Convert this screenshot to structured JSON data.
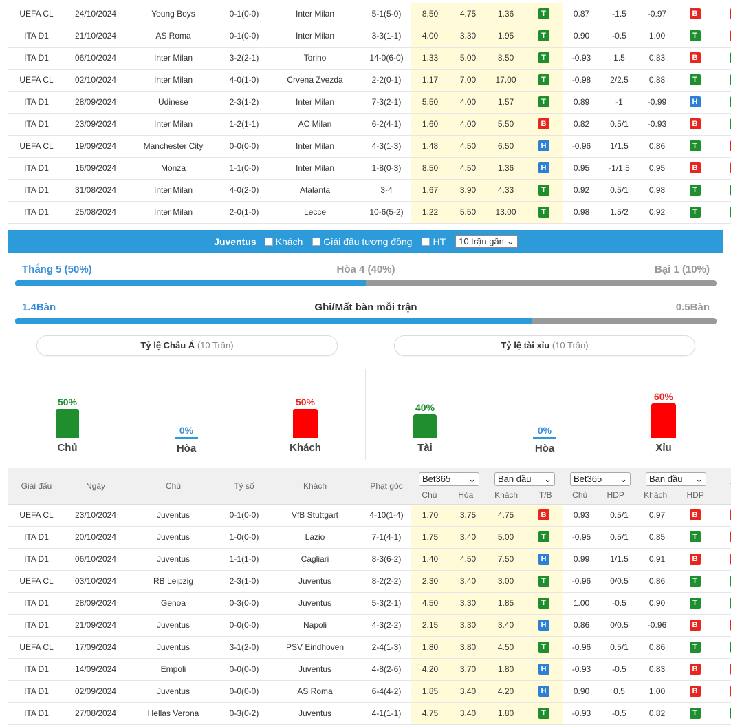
{
  "top_matches": [
    {
      "league": "UEFA CL",
      "date": "24/10/2024",
      "home": "Young Boys",
      "home_hl": false,
      "score": "0-1(0-0)",
      "away": "Inter Milan",
      "away_hl": true,
      "corners": "5-1(5-0)",
      "o1": "8.50",
      "o2": "4.75",
      "o3": "1.36",
      "tb": "T",
      "a1": "0.87",
      "hdp": "-1.5",
      "a2": "-0.97",
      "hcap": "B",
      "ou": "X"
    },
    {
      "league": "ITA D1",
      "date": "21/10/2024",
      "home": "AS Roma",
      "home_hl": false,
      "score": "0-1(0-0)",
      "away": "Inter Milan",
      "away_hl": true,
      "corners": "3-3(1-1)",
      "o1": "4.00",
      "o2": "3.30",
      "o3": "1.95",
      "tb": "T",
      "a1": "0.90",
      "hdp": "-0.5",
      "a2": "1.00",
      "hcap": "T",
      "ou": "X"
    },
    {
      "league": "ITA D1",
      "date": "06/10/2024",
      "home": "Inter Milan",
      "home_hl": true,
      "score": "3-2(2-1)",
      "away": "Torino",
      "away_hl": false,
      "corners": "14-0(6-0)",
      "o1": "1.33",
      "o2": "5.00",
      "o3": "8.50",
      "tb": "T",
      "a1": "-0.93",
      "hdp": "1.5",
      "a2": "0.83",
      "hcap": "B",
      "ou": "T"
    },
    {
      "league": "UEFA CL",
      "date": "02/10/2024",
      "home": "Inter Milan",
      "home_hl": true,
      "score": "4-0(1-0)",
      "away": "Crvena Zvezda",
      "away_hl": false,
      "corners": "2-2(0-1)",
      "o1": "1.17",
      "o2": "7.00",
      "o3": "17.00",
      "tb": "T",
      "a1": "-0.98",
      "hdp": "2/2.5",
      "a2": "0.88",
      "hcap": "T",
      "ou": "T"
    },
    {
      "league": "ITA D1",
      "date": "28/09/2024",
      "home": "Udinese",
      "home_hl": false,
      "score": "2-3(1-2)",
      "away": "Inter Milan",
      "away_hl": true,
      "corners": "7-3(2-1)",
      "o1": "5.50",
      "o2": "4.00",
      "o3": "1.57",
      "tb": "T",
      "a1": "0.89",
      "hdp": "-1",
      "a2": "-0.99",
      "hcap": "H",
      "ou": "T"
    },
    {
      "league": "ITA D1",
      "date": "23/09/2024",
      "home": "Inter Milan",
      "home_hl": true,
      "score": "1-2(1-1)",
      "away": "AC Milan",
      "away_hl": false,
      "corners": "6-2(4-1)",
      "o1": "1.60",
      "o2": "4.00",
      "o3": "5.50",
      "tb": "B",
      "a1": "0.82",
      "hdp": "0.5/1",
      "a2": "-0.93",
      "hcap": "B",
      "ou": "T"
    },
    {
      "league": "UEFA CL",
      "date": "19/09/2024",
      "home": "Manchester City",
      "home_hl": false,
      "score": "0-0(0-0)",
      "away": "Inter Milan",
      "away_hl": true,
      "corners": "4-3(1-3)",
      "o1": "1.48",
      "o2": "4.50",
      "o3": "6.50",
      "tb": "H",
      "a1": "-0.96",
      "hdp": "1/1.5",
      "a2": "0.86",
      "hcap": "T",
      "ou": "X"
    },
    {
      "league": "ITA D1",
      "date": "16/09/2024",
      "home": "Monza",
      "home_hl": false,
      "score": "1-1(0-0)",
      "away": "Inter Milan",
      "away_hl": true,
      "corners": "1-8(0-3)",
      "o1": "8.50",
      "o2": "4.50",
      "o3": "1.36",
      "tb": "H",
      "a1": "0.95",
      "hdp": "-1/1.5",
      "a2": "0.95",
      "hcap": "B",
      "ou": "X"
    },
    {
      "league": "ITA D1",
      "date": "31/08/2024",
      "home": "Inter Milan",
      "home_hl": true,
      "score": "4-0(2-0)",
      "away": "Atalanta",
      "away_hl": false,
      "corners": "3-4",
      "o1": "1.67",
      "o2": "3.90",
      "o3": "4.33",
      "tb": "T",
      "a1": "0.92",
      "hdp": "0.5/1",
      "a2": "0.98",
      "hcap": "T",
      "ou": "T"
    },
    {
      "league": "ITA D1",
      "date": "25/08/2024",
      "home": "Inter Milan",
      "home_hl": true,
      "score": "2-0(1-0)",
      "away": "Lecce",
      "away_hl": false,
      "corners": "10-6(5-2)",
      "o1": "1.22",
      "o2": "5.50",
      "o3": "13.00",
      "tb": "T",
      "a1": "0.98",
      "hdp": "1.5/2",
      "a2": "0.92",
      "hcap": "T",
      "ou": "T"
    }
  ],
  "filter_bar": {
    "team": "Juventus",
    "opt_away": "Khách",
    "opt_same_league": "Giải đấu tương đồng",
    "opt_ht": "HT",
    "select_value": "10 trận gần",
    "select_arrow": "⌄"
  },
  "summary": {
    "win_label": "Thắng 5 (50%)",
    "draw_label": "Hòa 4 (40%)",
    "loss_label": "Bại 1 (10%)",
    "win_fraction": 0.5,
    "goals_for": "1.4Bàn",
    "goals_title": "Ghi/Mất bàn mỗi trận",
    "goals_against": "0.5Bàn",
    "goals_fraction": 0.737
  },
  "asian_odds": {
    "title": "Tỷ lệ Châu Á",
    "sub": "(10 Trận)",
    "home_pct": "50%",
    "home_label": "Chủ",
    "home_value": 50,
    "draw_pct": "0%",
    "draw_label": "Hòa",
    "draw_value": 0,
    "away_pct": "50%",
    "away_label": "Khách",
    "away_value": 50
  },
  "over_under": {
    "title": "Tỷ lệ tài xỉu",
    "sub": "(10 Trận)",
    "over_pct": "40%",
    "over_label": "Tài",
    "over_value": 40,
    "draw_pct": "0%",
    "draw_label": "Hòa",
    "draw_value": 0,
    "under_pct": "60%",
    "under_label": "Xỉu",
    "under_value": 60
  },
  "bottom_header": {
    "league": "Giải đấu",
    "date": "Ngày",
    "home": "Chủ",
    "score": "Tỷ số",
    "away": "Khách",
    "corners": "Phạt góc",
    "sel1": "Bet365",
    "sel2": "Ban đầu",
    "sel3": "Bet365",
    "sel4": "Ban đầu",
    "arrow": "⌄",
    "sub_home": "Chủ",
    "sub_draw": "Hòa",
    "sub_away": "Khách",
    "sub_tb": "T/B",
    "sub_home2": "Chủ",
    "sub_hdp": "HDP",
    "sub_away2": "Khách",
    "sub_hdp2": "HDP",
    "tx": "T/X"
  },
  "bottom_matches": [
    {
      "league": "UEFA CL",
      "date": "23/10/2024",
      "home": "Juventus",
      "home_hl": true,
      "score": "0-1(0-0)",
      "away": "VfB Stuttgart",
      "away_hl": false,
      "corners": "4-10(1-4)",
      "o1": "1.70",
      "o2": "3.75",
      "o3": "4.75",
      "tb": "B",
      "a1": "0.93",
      "hdp": "0.5/1",
      "a2": "0.97",
      "hcap": "B",
      "ou": "X"
    },
    {
      "league": "ITA D1",
      "date": "20/10/2024",
      "home": "Juventus",
      "home_hl": true,
      "score": "1-0(0-0)",
      "away": "Lazio",
      "away_hl": false,
      "corners": "7-1(4-1)",
      "o1": "1.75",
      "o2": "3.40",
      "o3": "5.00",
      "tb": "T",
      "a1": "-0.95",
      "hdp": "0.5/1",
      "a2": "0.85",
      "hcap": "T",
      "ou": "X"
    },
    {
      "league": "ITA D1",
      "date": "06/10/2024",
      "home": "Juventus",
      "home_hl": true,
      "score": "1-1(1-0)",
      "away": "Cagliari",
      "away_hl": false,
      "corners": "8-3(6-2)",
      "o1": "1.40",
      "o2": "4.50",
      "o3": "7.50",
      "tb": "H",
      "a1": "0.99",
      "hdp": "1/1.5",
      "a2": "0.91",
      "hcap": "B",
      "ou": "X"
    },
    {
      "league": "UEFA CL",
      "date": "03/10/2024",
      "home": "RB Leipzig",
      "home_hl": false,
      "score": "2-3(1-0)",
      "away": "Juventus",
      "away_hl": true,
      "corners": "8-2(2-2)",
      "o1": "2.30",
      "o2": "3.40",
      "o3": "3.00",
      "tb": "T",
      "a1": "-0.96",
      "hdp": "0/0.5",
      "a2": "0.86",
      "hcap": "T",
      "ou": "T"
    },
    {
      "league": "ITA D1",
      "date": "28/09/2024",
      "home": "Genoa",
      "home_hl": false,
      "score": "0-3(0-0)",
      "away": "Juventus",
      "away_hl": true,
      "corners": "5-3(2-1)",
      "o1": "4.50",
      "o2": "3.30",
      "o3": "1.85",
      "tb": "T",
      "a1": "1.00",
      "hdp": "-0.5",
      "a2": "0.90",
      "hcap": "T",
      "ou": "T"
    },
    {
      "league": "ITA D1",
      "date": "21/09/2024",
      "home": "Juventus",
      "home_hl": true,
      "score": "0-0(0-0)",
      "away": "Napoli",
      "away_hl": false,
      "corners": "4-3(2-2)",
      "o1": "2.15",
      "o2": "3.30",
      "o3": "3.40",
      "tb": "H",
      "a1": "0.86",
      "hdp": "0/0.5",
      "a2": "-0.96",
      "hcap": "B",
      "ou": "X"
    },
    {
      "league": "UEFA CL",
      "date": "17/09/2024",
      "home": "Juventus",
      "home_hl": true,
      "score": "3-1(2-0)",
      "away": "PSV Eindhoven",
      "away_hl": false,
      "corners": "2-4(1-3)",
      "o1": "1.80",
      "o2": "3.80",
      "o3": "4.50",
      "tb": "T",
      "a1": "-0.96",
      "hdp": "0.5/1",
      "a2": "0.86",
      "hcap": "T",
      "ou": "T"
    },
    {
      "league": "ITA D1",
      "date": "14/09/2024",
      "home": "Empoli",
      "home_hl": false,
      "score": "0-0(0-0)",
      "away": "Juventus",
      "away_hl": true,
      "corners": "4-8(2-6)",
      "o1": "4.20",
      "o2": "3.70",
      "o3": "1.80",
      "tb": "H",
      "a1": "-0.93",
      "hdp": "-0.5",
      "a2": "0.83",
      "hcap": "B",
      "ou": "X"
    },
    {
      "league": "ITA D1",
      "date": "02/09/2024",
      "home": "Juventus",
      "home_hl": true,
      "score": "0-0(0-0)",
      "away": "AS Roma",
      "away_hl": false,
      "corners": "6-4(4-2)",
      "o1": "1.85",
      "o2": "3.40",
      "o3": "4.20",
      "tb": "H",
      "a1": "0.90",
      "hdp": "0.5",
      "a2": "1.00",
      "hcap": "B",
      "ou": "X"
    },
    {
      "league": "ITA D1",
      "date": "27/08/2024",
      "home": "Hellas Verona",
      "home_hl": false,
      "score": "0-3(0-2)",
      "away": "Juventus",
      "away_hl": true,
      "corners": "4-1(1-1)",
      "o1": "4.75",
      "o2": "3.40",
      "o3": "1.80",
      "tb": "T",
      "a1": "-0.93",
      "hdp": "-0.5",
      "a2": "0.82",
      "hcap": "T",
      "ou": "T"
    }
  ],
  "colors": {
    "accent_blue": "#2d9ad9",
    "inter_orange": "#e8734a",
    "juve_blue": "#3a8ed6",
    "score_red": "#c0392b",
    "win_green": "#1e8e2e",
    "loss_red": "#e6261f",
    "odds_bg": "#fffbd9"
  }
}
